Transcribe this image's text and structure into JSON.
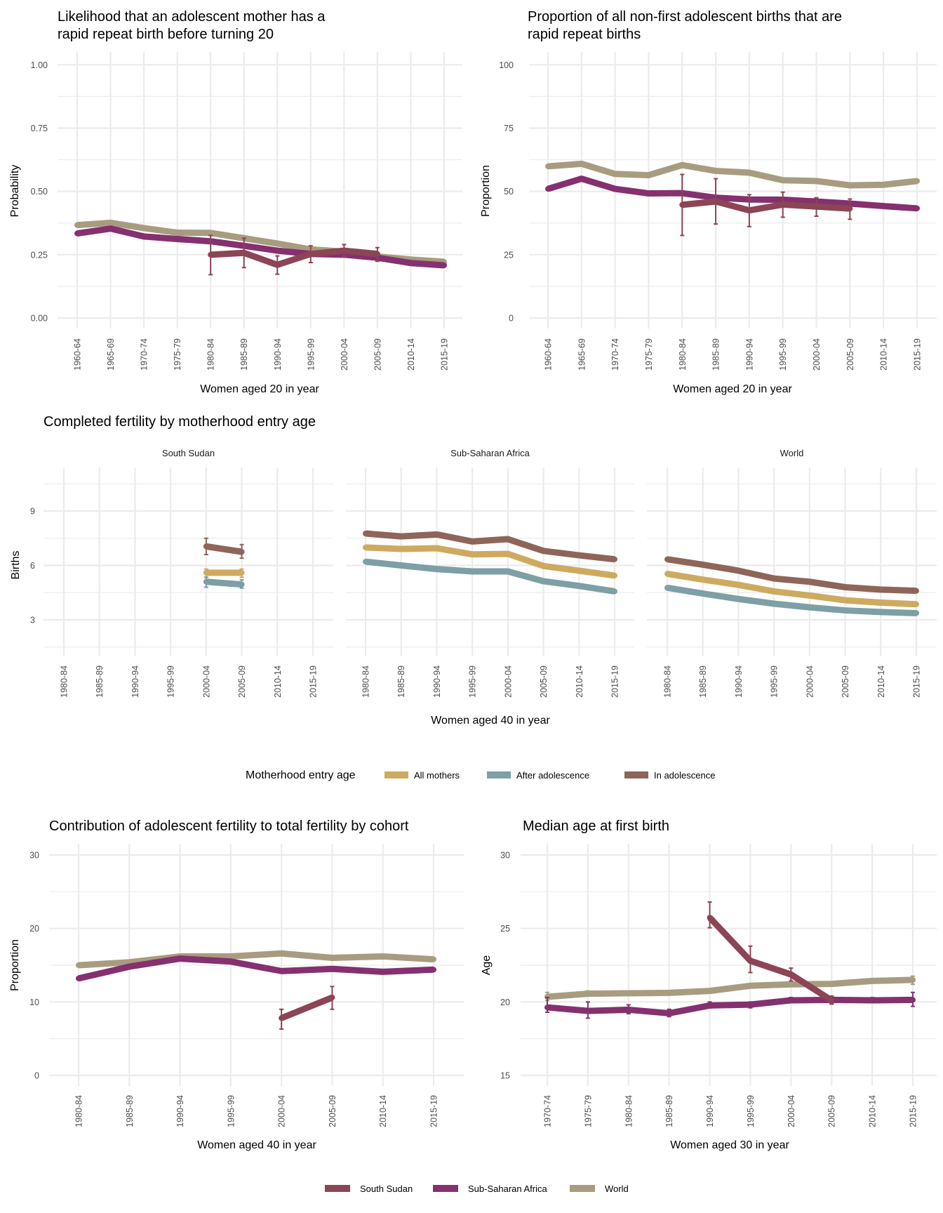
{
  "colors": {
    "South Sudan": "#8b4555",
    "Sub-Saharan Africa": "#85306f",
    "World": "#a89c80",
    "All mothers": "#cdaa5f",
    "After adolescence": "#7d9fa5",
    "In adolescence": "#8e6558",
    "grid": "#ebebeb"
  },
  "region_legend": {
    "items": [
      "South Sudan",
      "Sub-Saharan Africa",
      "World"
    ]
  },
  "entry_legend": {
    "title": "Motherhood entry age",
    "items": [
      "All mothers",
      "After adolescence",
      "In adolescence"
    ]
  },
  "chart_data": [
    {
      "id": "rapid-repeat-likelihood",
      "type": "line",
      "title": "Likelihood that an adolescent mother has a\nrapid repeat birth before turning 20",
      "xlabel": "Women aged 20 in year",
      "ylabel": "Probability",
      "ylim": [
        0,
        1
      ],
      "yticks": [
        0,
        0.25,
        0.5,
        0.75,
        1
      ],
      "ytick_labels": [
        "0.00",
        "0.25",
        "0.50",
        "0.75",
        "1.00"
      ],
      "grid": true,
      "categories": [
        "1960-64",
        "1965-69",
        "1970-74",
        "1975-79",
        "1980-84",
        "1985-89",
        "1990-94",
        "1995-99",
        "2000-04",
        "2005-09",
        "2010-14",
        "2015-19"
      ],
      "series": [
        {
          "name": "World",
          "values": [
            0.367,
            0.376,
            0.355,
            0.337,
            0.336,
            0.315,
            0.294,
            0.271,
            0.262,
            0.243,
            0.231,
            0.222
          ]
        },
        {
          "name": "Sub-Saharan Africa",
          "values": [
            0.334,
            0.353,
            0.322,
            0.312,
            0.303,
            0.285,
            0.266,
            0.253,
            0.25,
            0.238,
            0.217,
            0.208
          ]
        },
        {
          "name": "South Sudan",
          "values": [
            null,
            null,
            null,
            null,
            0.25,
            0.257,
            0.21,
            0.253,
            0.266,
            0.253,
            null,
            null
          ],
          "lower": [
            null,
            null,
            null,
            null,
            0.171,
            0.199,
            0.173,
            0.219,
            0.243,
            0.224,
            null,
            null
          ],
          "upper": [
            null,
            null,
            null,
            null,
            0.326,
            0.315,
            0.245,
            0.285,
            0.29,
            0.278,
            null,
            null
          ]
        }
      ]
    },
    {
      "id": "rapid-repeat-proportion",
      "type": "line",
      "title": "Proportion of all non-first adolescent births that are\nrapid repeat births",
      "xlabel": "Women aged 20 in year",
      "ylabel": "Proportion",
      "ylim": [
        0,
        100
      ],
      "yticks": [
        0,
        25,
        50,
        75,
        100
      ],
      "ytick_labels": [
        "0",
        "25",
        "50",
        "75",
        "100"
      ],
      "grid": true,
      "categories": [
        "1960-64",
        "1965-69",
        "1970-74",
        "1975-79",
        "1980-84",
        "1985-89",
        "1990-94",
        "1995-99",
        "2000-04",
        "2005-09",
        "2010-14",
        "2015-19"
      ],
      "series": [
        {
          "name": "World",
          "values": [
            59.9,
            60.9,
            56.9,
            56.4,
            60.4,
            58.1,
            57.4,
            54.4,
            54.1,
            52.4,
            52.6,
            54.1
          ]
        },
        {
          "name": "Sub-Saharan Africa",
          "values": [
            51.0,
            55.0,
            51.0,
            49.2,
            49.3,
            47.5,
            46.8,
            46.7,
            46.0,
            45.2,
            44.2,
            43.3
          ]
        },
        {
          "name": "South Sudan",
          "values": [
            null,
            null,
            null,
            null,
            44.7,
            46.0,
            42.5,
            44.8,
            44.0,
            43.2,
            null,
            null
          ],
          "lower": [
            null,
            null,
            null,
            null,
            32.6,
            37.1,
            36.1,
            39.8,
            40.2,
            39.0,
            null,
            null
          ],
          "upper": [
            null,
            null,
            null,
            null,
            56.7,
            55.0,
            48.7,
            49.7,
            47.5,
            47.0,
            null,
            null
          ]
        }
      ]
    },
    {
      "id": "completed-fertility",
      "type": "line",
      "title": "Completed fertility by motherhood entry age",
      "xlabel": "Women aged 40 in year",
      "ylabel": "Births",
      "ylim": [
        0.9,
        11.7
      ],
      "yticks": [
        3,
        6,
        9
      ],
      "ytick_labels": [
        "3",
        "6",
        "9"
      ],
      "grid": true,
      "legend": "bottom",
      "categories": [
        "1980-84",
        "1985-89",
        "1990-94",
        "1995-99",
        "2000-04",
        "2005-09",
        "2010-14",
        "2015-19"
      ],
      "facets": [
        {
          "label": "South Sudan",
          "series": [
            {
              "name": "In adolescence",
              "values": [
                null,
                null,
                null,
                null,
                7.05,
                6.75,
                null,
                null
              ],
              "lower": [
                null,
                null,
                null,
                null,
                6.6,
                6.4,
                null,
                null
              ],
              "upper": [
                null,
                null,
                null,
                null,
                7.5,
                7.15,
                null,
                null
              ]
            },
            {
              "name": "All mothers",
              "values": [
                null,
                null,
                null,
                null,
                5.6,
                5.6,
                null,
                null
              ],
              "lower": [
                null,
                null,
                null,
                null,
                5.35,
                5.35,
                null,
                null
              ],
              "upper": [
                null,
                null,
                null,
                null,
                5.8,
                5.8,
                null,
                null
              ]
            },
            {
              "name": "After adolescence",
              "values": [
                null,
                null,
                null,
                null,
                5.1,
                4.95,
                null,
                null
              ],
              "lower": [
                null,
                null,
                null,
                null,
                4.8,
                4.75,
                null,
                null
              ],
              "upper": [
                null,
                null,
                null,
                null,
                5.35,
                5.2,
                null,
                null
              ]
            }
          ]
        },
        {
          "label": "Sub-Saharan Africa",
          "series": [
            {
              "name": "In adolescence",
              "values": [
                7.76,
                7.6,
                7.71,
                7.32,
                7.45,
                6.8,
                6.56,
                6.34
              ]
            },
            {
              "name": "All mothers",
              "values": [
                6.99,
                6.91,
                6.95,
                6.61,
                6.64,
                5.97,
                5.71,
                5.44
              ]
            },
            {
              "name": "After adolescence",
              "values": [
                6.21,
                6.0,
                5.8,
                5.67,
                5.67,
                5.13,
                4.87,
                4.57
              ]
            }
          ]
        },
        {
          "label": "World",
          "series": [
            {
              "name": "In adolescence",
              "values": [
                6.34,
                6.04,
                5.71,
                5.28,
                5.1,
                4.8,
                4.67,
                4.6
              ]
            },
            {
              "name": "All mothers",
              "values": [
                5.54,
                5.22,
                4.93,
                4.57,
                4.34,
                4.08,
                3.95,
                3.86
              ]
            },
            {
              "name": "After adolescence",
              "values": [
                4.77,
                4.45,
                4.15,
                3.89,
                3.69,
                3.52,
                3.43,
                3.37
              ]
            }
          ]
        }
      ]
    },
    {
      "id": "adolescent-contribution",
      "type": "line",
      "title": "Contribution of adolescent fertility to total fertility by cohort",
      "xlabel": "Women aged 40 in year",
      "ylabel": "Proportion",
      "ylim": [
        0,
        30
      ],
      "yticks": [
        0,
        10,
        20,
        30
      ],
      "ytick_labels": [
        "0",
        "10",
        "20",
        "30"
      ],
      "grid": true,
      "categories": [
        "1980-84",
        "1985-89",
        "1990-94",
        "1995-99",
        "2000-04",
        "2005-09",
        "2010-14",
        "2015-19"
      ],
      "series": [
        {
          "name": "World",
          "values": [
            15.0,
            15.4,
            16.2,
            16.2,
            16.6,
            16.0,
            16.2,
            15.8
          ]
        },
        {
          "name": "Sub-Saharan Africa",
          "values": [
            13.2,
            14.8,
            15.9,
            15.5,
            14.2,
            14.5,
            14.1,
            14.4
          ]
        },
        {
          "name": "South Sudan",
          "values": [
            null,
            null,
            null,
            null,
            7.8,
            10.6,
            null,
            null
          ],
          "lower": [
            null,
            null,
            null,
            null,
            6.3,
            9.0,
            null,
            null
          ],
          "upper": [
            null,
            null,
            null,
            null,
            9.0,
            12.1,
            null,
            null
          ]
        }
      ]
    },
    {
      "id": "median-age-first-birth",
      "type": "line",
      "title": "Median age at first birth",
      "xlabel": "Women aged 30 in year",
      "ylabel": "Age",
      "ylim": [
        15,
        30
      ],
      "yticks": [
        15,
        20,
        25,
        30
      ],
      "ytick_labels": [
        "15",
        "20",
        "25",
        "30"
      ],
      "grid": true,
      "legend": "bottom",
      "categories": [
        "1970-74",
        "1975-79",
        "1980-84",
        "1985-89",
        "1990-94",
        "1995-99",
        "2000-04",
        "2005-09",
        "2010-14",
        "2015-19"
      ],
      "series": [
        {
          "name": "World",
          "values": [
            20.35,
            20.56,
            20.59,
            20.62,
            20.75,
            21.1,
            21.2,
            21.23,
            21.43,
            21.5
          ],
          "lower": [
            20.1,
            20.4,
            20.5,
            null,
            null,
            null,
            null,
            null,
            null,
            21.2
          ],
          "upper": [
            20.65,
            20.75,
            20.7,
            null,
            null,
            null,
            null,
            null,
            null,
            21.75
          ]
        },
        {
          "name": "Sub-Saharan Africa",
          "values": [
            19.63,
            19.39,
            19.47,
            19.23,
            19.76,
            19.82,
            20.11,
            20.14,
            20.11,
            20.14
          ],
          "lower": [
            19.3,
            18.9,
            19.2,
            19.0,
            19.6,
            19.6,
            19.95,
            19.9,
            19.95,
            19.7
          ],
          "upper": [
            20.3,
            20.0,
            19.8,
            19.5,
            20.0,
            20.0,
            20.3,
            20.4,
            20.3,
            20.65
          ]
        },
        {
          "name": "South Sudan",
          "values": [
            null,
            null,
            null,
            null,
            25.74,
            22.8,
            21.87,
            20.11,
            null,
            null
          ],
          "lower": [
            null,
            null,
            null,
            null,
            25.05,
            22.0,
            21.43,
            19.85,
            null,
            null
          ],
          "upper": [
            null,
            null,
            null,
            null,
            26.8,
            23.8,
            22.3,
            20.4,
            null,
            null
          ]
        }
      ]
    }
  ]
}
